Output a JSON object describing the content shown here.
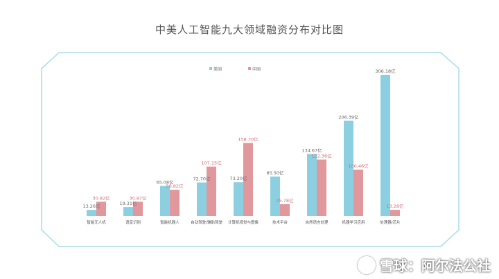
{
  "chart_data": {
    "type": "bar",
    "title": "中美人工智能九大领域融资分布对比图",
    "categories": [
      "智能无人机",
      "语音识别",
      "智能机器人",
      "自动驾驶/辅助驾驶",
      "计算机视觉与图像",
      "技术平台",
      "自然语言处理",
      "机器学习应用",
      "处理器/芯片"
    ],
    "series": [
      {
        "name": "美国",
        "color": "#8ccfe0",
        "values": [
          13.26,
          19.31,
          65.08,
          72.7,
          73.2,
          85.5,
          134.67,
          206.39,
          306.18
        ],
        "labels": [
          "13.26亿",
          "19.31亿",
          "65.08亿",
          "72.70亿",
          "73.20亿",
          "85.50亿",
          "134.67亿",
          "206.39亿",
          "306.18亿"
        ],
        "label_color": "#666666"
      },
      {
        "name": "中国",
        "color": "#e0989c",
        "values": [
          30.92,
          30.87,
          56.82,
          107.15,
          158.3,
          25.78,
          122.36,
          100.46,
          13.28
        ],
        "labels": [
          "30.92亿",
          "30.87亿",
          "56.82亿",
          "107.15亿",
          "158.30亿",
          "25.78亿",
          "122.36亿",
          "100.46亿",
          "13.28亿"
        ],
        "label_color": "#d96b75"
      }
    ],
    "ylim": [
      0,
      306.18
    ],
    "grid": false,
    "legend": "top-left"
  },
  "watermark": {
    "text": "雪球：阿尔法公社",
    "icon": "snowball-logo-icon"
  },
  "colors": {
    "frame": "#a8dce8",
    "baseline": "#dddddd"
  }
}
